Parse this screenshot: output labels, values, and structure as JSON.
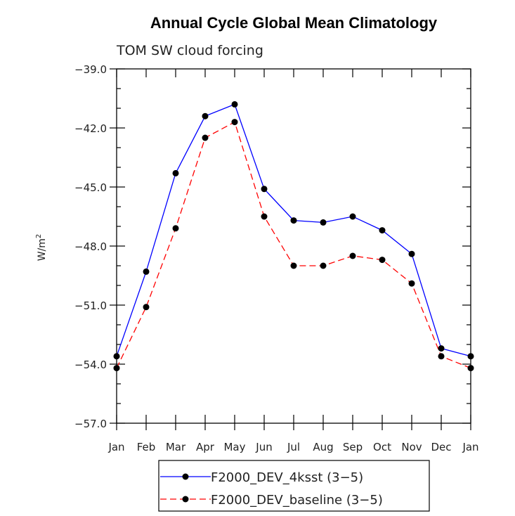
{
  "chart_data": {
    "type": "line",
    "title": "Annual Cycle Global Mean Climatology",
    "subtitle": "TOM SW cloud forcing",
    "ylabel": "W/m",
    "ylabel_sup": "2",
    "xlabel": "",
    "categories": [
      "Jan",
      "Feb",
      "Mar",
      "Apr",
      "May",
      "Jun",
      "Jul",
      "Aug",
      "Sep",
      "Oct",
      "Nov",
      "Dec",
      "Jan"
    ],
    "ylim": [
      -57.0,
      -39.0
    ],
    "yticks": [
      -39.0,
      -42.0,
      -45.0,
      -48.0,
      -51.0,
      -54.0,
      -57.0
    ],
    "ytick_labels": [
      "−39.0",
      "−42.0",
      "−45.0",
      "−48.0",
      "−51.0",
      "−54.0",
      "−57.0"
    ],
    "series": [
      {
        "name": "F2000_DEV_4ksst (3−5)",
        "color": "#0000ff",
        "dash": "solid",
        "values": [
          -53.6,
          -49.3,
          -44.3,
          -41.4,
          -40.8,
          -45.1,
          -46.7,
          -46.8,
          -46.5,
          -47.2,
          -48.4,
          -53.2,
          -53.6
        ]
      },
      {
        "name": "F2000_DEV_baseline (3−5)",
        "color": "#ff0000",
        "dash": "dashed",
        "values": [
          -54.2,
          -51.1,
          -47.1,
          -42.5,
          -41.7,
          -46.5,
          -49.0,
          -49.0,
          -48.5,
          -48.7,
          -49.9,
          -53.6,
          -54.2
        ]
      }
    ],
    "legend_position": "bottom"
  }
}
